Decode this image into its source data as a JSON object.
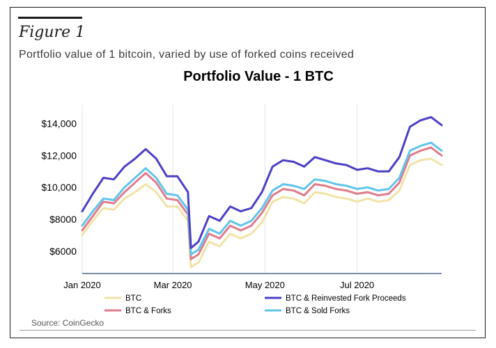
{
  "figure": {
    "label": "Figure 1",
    "subtitle": "Portfolio value of 1 bitcoin, varied by use of forked coins received",
    "source": "Source: CoinGecko"
  },
  "chart_data": {
    "type": "line",
    "title": "Portfolio Value - 1 BTC",
    "xlabel": "",
    "ylabel": "",
    "x_ticks": [
      "Jan 2020",
      "Mar 2020",
      "May 2020",
      "Jul 2020"
    ],
    "y_ticks": [
      "$6000",
      "$8000",
      "$10,000",
      "$12,000",
      "$14,000"
    ],
    "ylim": [
      4600,
      15200
    ],
    "grid": "vertical",
    "legend_position": "bottom",
    "x": [
      "2020-01-01",
      "2020-01-08",
      "2020-01-15",
      "2020-01-22",
      "2020-01-29",
      "2020-02-05",
      "2020-02-12",
      "2020-02-19",
      "2020-02-26",
      "2020-03-04",
      "2020-03-11",
      "2020-03-13",
      "2020-03-18",
      "2020-03-25",
      "2020-04-01",
      "2020-04-08",
      "2020-04-15",
      "2020-04-22",
      "2020-04-29",
      "2020-05-06",
      "2020-05-13",
      "2020-05-20",
      "2020-05-27",
      "2020-06-03",
      "2020-06-10",
      "2020-06-17",
      "2020-06-24",
      "2020-07-01",
      "2020-07-08",
      "2020-07-15",
      "2020-07-22",
      "2020-07-29",
      "2020-08-05",
      "2020-08-12",
      "2020-08-19",
      "2020-08-26"
    ],
    "series": [
      {
        "name": "BTC",
        "color": "#f2e2a6",
        "values": [
          7000,
          7900,
          8700,
          8600,
          9300,
          9700,
          10200,
          9700,
          8800,
          8800,
          7900,
          5000,
          5300,
          6600,
          6300,
          7100,
          6800,
          7100,
          7800,
          9100,
          9400,
          9300,
          9000,
          9700,
          9600,
          9400,
          9300,
          9100,
          9300,
          9100,
          9200,
          9800,
          11400,
          11700,
          11800,
          11400
        ]
      },
      {
        "name": "BTC & Reinvested Fork Proceeds",
        "color": "#4b3fc4",
        "values": [
          8500,
          9600,
          10600,
          10500,
          11300,
          11800,
          12400,
          11800,
          10700,
          10700,
          9700,
          6200,
          6600,
          8200,
          7900,
          8800,
          8500,
          8700,
          9700,
          11300,
          11700,
          11600,
          11300,
          11900,
          11700,
          11500,
          11400,
          11100,
          11200,
          11000,
          11000,
          11900,
          13800,
          14200,
          14400,
          13900
        ]
      },
      {
        "name": "BTC & Forks",
        "color": "#e07a8a",
        "values": [
          7300,
          8200,
          9100,
          9000,
          9700,
          10300,
          10900,
          10300,
          9300,
          9200,
          8300,
          5500,
          5800,
          7100,
          6800,
          7600,
          7300,
          7600,
          8400,
          9500,
          9900,
          9800,
          9500,
          10200,
          10100,
          9900,
          9800,
          9600,
          9700,
          9500,
          9600,
          10300,
          12000,
          12300,
          12500,
          12000
        ]
      },
      {
        "name": "BTC & Sold Forks",
        "color": "#5ec4ec",
        "values": [
          7600,
          8500,
          9300,
          9200,
          10000,
          10600,
          11200,
          10600,
          9600,
          9500,
          8600,
          5800,
          6100,
          7400,
          7100,
          7900,
          7600,
          7900,
          8700,
          9800,
          10200,
          10100,
          9900,
          10500,
          10400,
          10200,
          10100,
          9900,
          10000,
          9800,
          9900,
          10600,
          12300,
          12600,
          12800,
          12300
        ]
      }
    ]
  }
}
